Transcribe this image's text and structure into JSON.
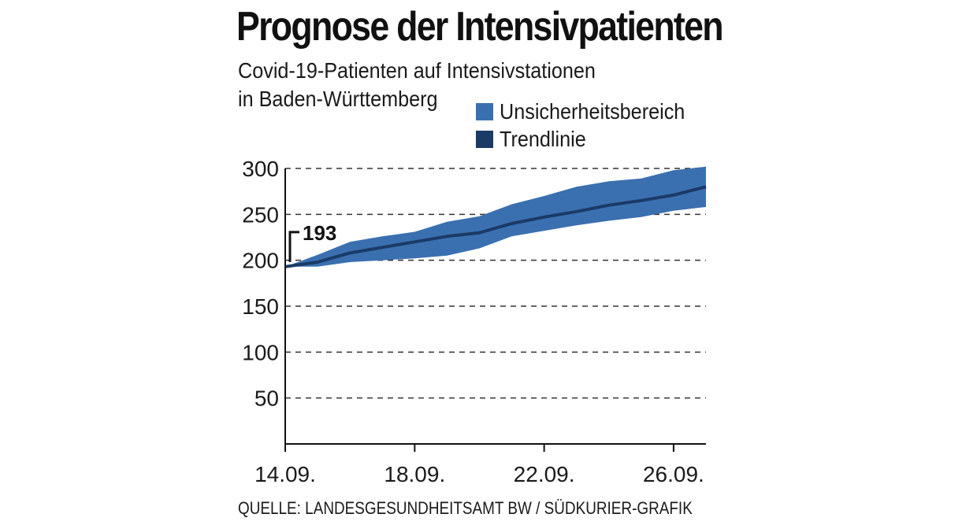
{
  "header": {
    "title": "Prognose der Intensivpatienten",
    "subtitle_line1": "Covid-19-Patienten auf Intensivstationen",
    "subtitle_line2": "in Baden-Württemberg"
  },
  "legend": [
    {
      "label": "Unsicherheitsbereich",
      "color": "#3a70b0"
    },
    {
      "label": "Trendlinie",
      "color": "#1b3a66"
    }
  ],
  "footer": {
    "source": "QUELLE: LANDESGESUNDHEITSAMT BW / SÜDKURIER-GRAFIK"
  },
  "chart_data": {
    "type": "area",
    "title": "Prognose der Intensivpatienten",
    "ylim": [
      0,
      300
    ],
    "y_ticks": [
      50,
      100,
      150,
      200,
      250,
      300
    ],
    "x_start": "14.09.",
    "x_end": "27.09.",
    "x_ticks": [
      "14.09.",
      "18.09.",
      "22.09.",
      "26.09."
    ],
    "x": [
      "14.09.",
      "15.09.",
      "16.09.",
      "17.09.",
      "18.09.",
      "19.09.",
      "20.09.",
      "21.09.",
      "22.09.",
      "23.09.",
      "24.09.",
      "25.09.",
      "26.09.",
      "27.09."
    ],
    "grid": "horizontal dashed",
    "legend_position": "top-right",
    "annotation": {
      "label": "193",
      "x": "14.09.",
      "y": 193
    },
    "series": [
      {
        "name": "Unsicherheitsbereich",
        "kind": "band",
        "lower": [
          193,
          193,
          198,
          200,
          202,
          205,
          213,
          226,
          232,
          238,
          243,
          247,
          254,
          258
        ],
        "upper": [
          193,
          206,
          220,
          226,
          231,
          242,
          248,
          261,
          270,
          280,
          286,
          289,
          298,
          302
        ]
      },
      {
        "name": "Trendlinie",
        "kind": "line",
        "values": [
          193,
          198,
          208,
          214,
          220,
          226,
          230,
          240,
          247,
          253,
          260,
          265,
          271,
          280
        ]
      }
    ]
  }
}
